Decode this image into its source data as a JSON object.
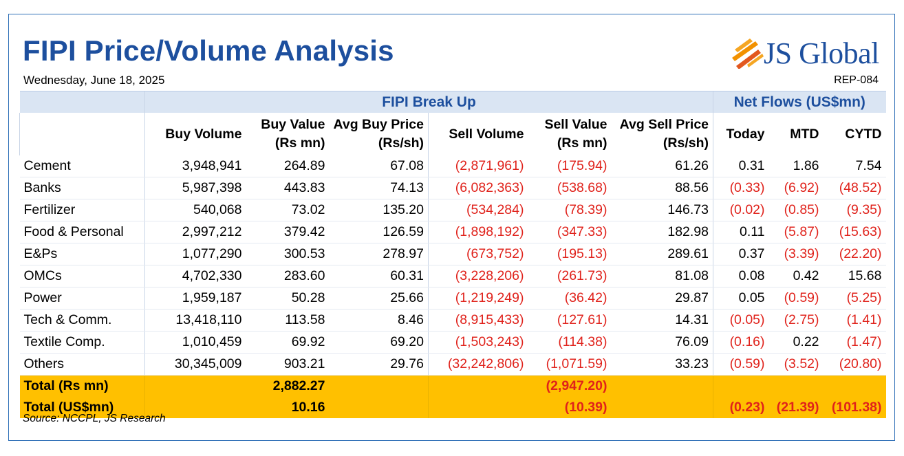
{
  "header": {
    "title": "FIPI Price/Volume Analysis",
    "date": "Wednesday, June 18, 2025",
    "report_id": "REP-084",
    "logo_text": "JS Global"
  },
  "colors": {
    "brand_blue": "#1d4f9e",
    "header_band": "#dae5f3",
    "total_band": "#ffc000",
    "negative": "#e0221b"
  },
  "groups": {
    "breakup": "FIPI Break Up",
    "netflows": "Net Flows (US$mn)"
  },
  "columns": {
    "buy_volume": "Buy Volume",
    "buy_value_1": "Buy Value",
    "buy_value_2": "(Rs mn)",
    "avg_buy_1": "Avg Buy Price",
    "avg_buy_2": "(Rs/sh)",
    "sell_volume": "Sell Volume",
    "sell_value_1": "Sell Value",
    "sell_value_2": "(Rs mn)",
    "avg_sell_1": "Avg Sell Price",
    "avg_sell_2": "(Rs/sh)",
    "today": "Today",
    "mtd": "MTD",
    "cytd": "CYTD"
  },
  "rows": [
    {
      "sector": "Cement",
      "buy_vol": "3,948,941",
      "buy_val": "264.89",
      "avg_buy": "67.08",
      "sell_vol": "(2,871,961)",
      "sell_val": "(175.94)",
      "avg_sell": "61.26",
      "today": "0.31",
      "mtd": "1.86",
      "cytd": "7.54"
    },
    {
      "sector": "Banks",
      "buy_vol": "5,987,398",
      "buy_val": "443.83",
      "avg_buy": "74.13",
      "sell_vol": "(6,082,363)",
      "sell_val": "(538.68)",
      "avg_sell": "88.56",
      "today": "(0.33)",
      "mtd": "(6.92)",
      "cytd": "(48.52)"
    },
    {
      "sector": "Fertilizer",
      "buy_vol": "540,068",
      "buy_val": "73.02",
      "avg_buy": "135.20",
      "sell_vol": "(534,284)",
      "sell_val": "(78.39)",
      "avg_sell": "146.73",
      "today": "(0.02)",
      "mtd": "(0.85)",
      "cytd": "(9.35)"
    },
    {
      "sector": "Food & Personal",
      "buy_vol": "2,997,212",
      "buy_val": "379.42",
      "avg_buy": "126.59",
      "sell_vol": "(1,898,192)",
      "sell_val": "(347.33)",
      "avg_sell": "182.98",
      "today": "0.11",
      "mtd": "(5.87)",
      "cytd": "(15.63)"
    },
    {
      "sector": "E&Ps",
      "buy_vol": "1,077,290",
      "buy_val": "300.53",
      "avg_buy": "278.97",
      "sell_vol": "(673,752)",
      "sell_val": "(195.13)",
      "avg_sell": "289.61",
      "today": "0.37",
      "mtd": "(3.39)",
      "cytd": "(22.20)"
    },
    {
      "sector": "OMCs",
      "buy_vol": "4,702,330",
      "buy_val": "283.60",
      "avg_buy": "60.31",
      "sell_vol": "(3,228,206)",
      "sell_val": "(261.73)",
      "avg_sell": "81.08",
      "today": "0.08",
      "mtd": "0.42",
      "cytd": "15.68"
    },
    {
      "sector": "Power",
      "buy_vol": "1,959,187",
      "buy_val": "50.28",
      "avg_buy": "25.66",
      "sell_vol": "(1,219,249)",
      "sell_val": "(36.42)",
      "avg_sell": "29.87",
      "today": "0.05",
      "mtd": "(0.59)",
      "cytd": "(5.25)"
    },
    {
      "sector": "Tech & Comm.",
      "buy_vol": "13,418,110",
      "buy_val": "113.58",
      "avg_buy": "8.46",
      "sell_vol": "(8,915,433)",
      "sell_val": "(127.61)",
      "avg_sell": "14.31",
      "today": "(0.05)",
      "mtd": "(2.75)",
      "cytd": "(1.41)"
    },
    {
      "sector": "Textile Comp.",
      "buy_vol": "1,010,459",
      "buy_val": "69.92",
      "avg_buy": "69.20",
      "sell_vol": "(1,503,243)",
      "sell_val": "(114.38)",
      "avg_sell": "76.09",
      "today": "(0.16)",
      "mtd": "0.22",
      "cytd": "(1.47)"
    },
    {
      "sector": "Others",
      "buy_vol": "30,345,009",
      "buy_val": "903.21",
      "avg_buy": "29.76",
      "sell_vol": "(32,242,806)",
      "sell_val": "(1,071.59)",
      "avg_sell": "33.23",
      "today": "(0.59)",
      "mtd": "(3.52)",
      "cytd": "(20.80)"
    }
  ],
  "totals": [
    {
      "label": "Total (Rs mn)",
      "buy_val": "2,882.27",
      "sell_val": "(2,947.20)",
      "today": "",
      "mtd": "",
      "cytd": ""
    },
    {
      "label": "Total (US$mn)",
      "buy_val": "10.16",
      "sell_val": "(10.39)",
      "today": "(0.23)",
      "mtd": "(21.39)",
      "cytd": "(101.38)"
    }
  ],
  "footer": {
    "source": "Source: NCCPL, JS Research"
  }
}
